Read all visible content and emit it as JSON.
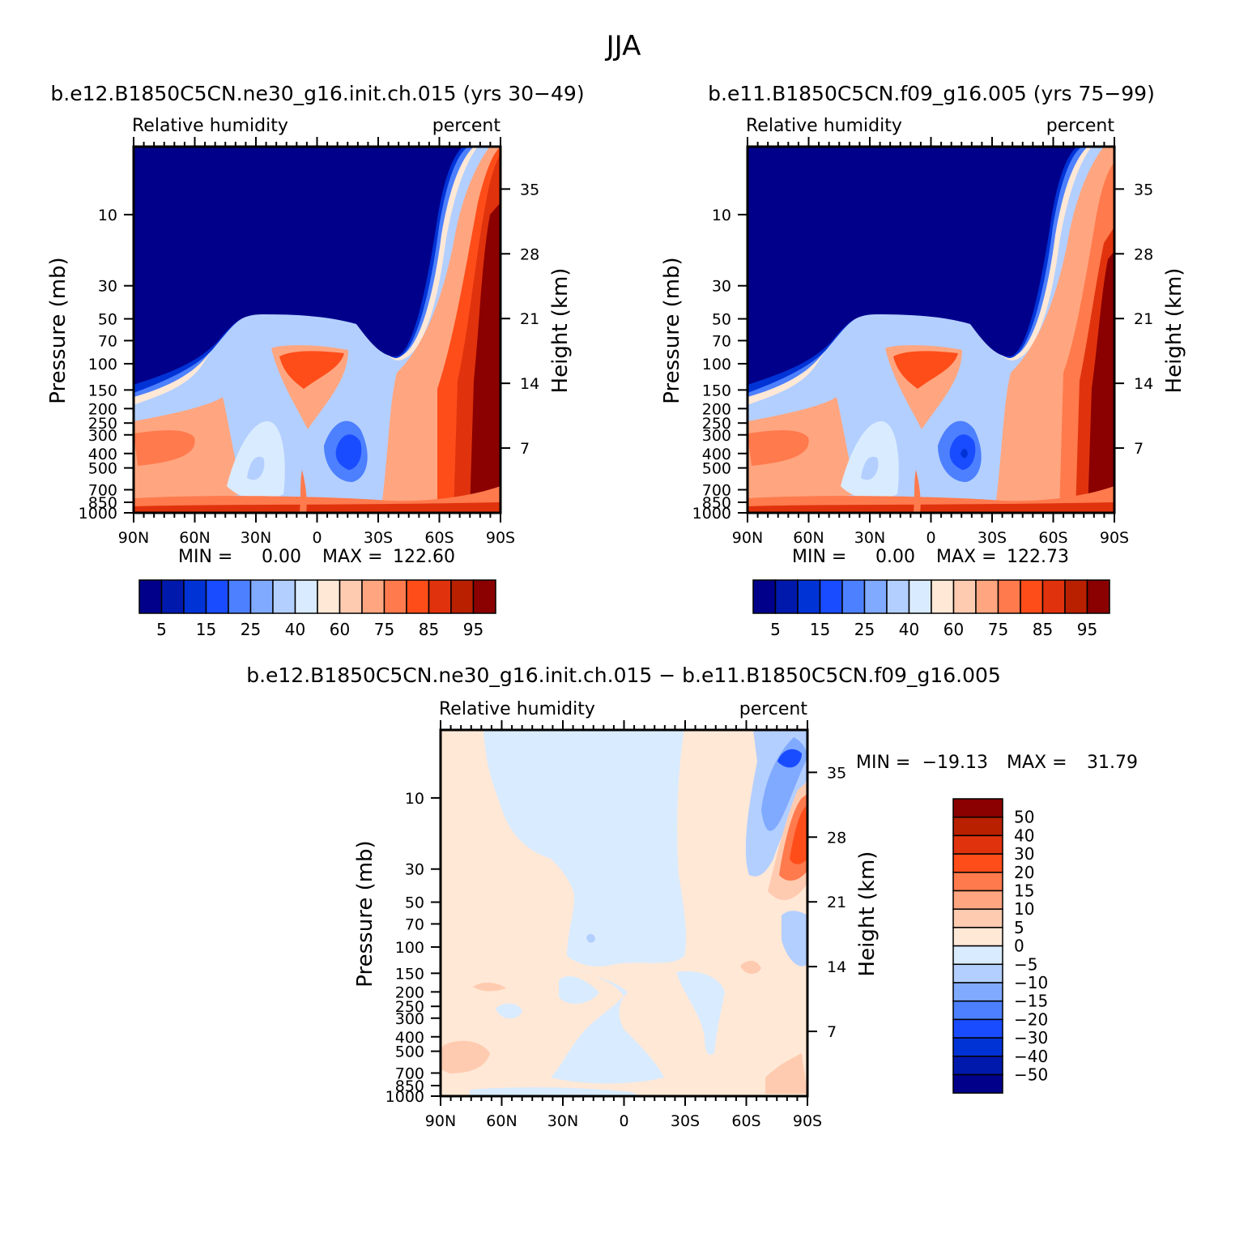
{
  "figure": {
    "title": "JJA"
  },
  "colors": {
    "abs_levels": [
      "#00008b",
      "#0019ad",
      "#0033d6",
      "#1a4cff",
      "#4d80ff",
      "#80aaff",
      "#b3cfff",
      "#d9ebff",
      "#ffe8d6",
      "#ffcbb0",
      "#ffa680",
      "#ff7a4d",
      "#ff4d1a",
      "#e0330d",
      "#b82000",
      "#8b0000"
    ],
    "diff_levels": [
      "#00008b",
      "#0019ad",
      "#0033d6",
      "#1a4cff",
      "#4d80ff",
      "#80aaff",
      "#b3cfff",
      "#d9ebff",
      "#ffe8d6",
      "#ffcbb0",
      "#ffa680",
      "#ff7a4d",
      "#ff4d1a",
      "#e0330d",
      "#b82000",
      "#8b0000"
    ]
  },
  "chart_data": [
    {
      "type": "contour",
      "title": "b.e12.B1850C5CN.ne30_g16.init.ch.015 (yrs 30−49)",
      "left_subtitle": "Relative humidity",
      "right_subtitle": "percent",
      "xlabel": "",
      "ylabel": "Pressure (mb)",
      "ylabel_right": "Height (km)",
      "x_ticks": [
        "90N",
        "60N",
        "30N",
        "0",
        "30S",
        "60S",
        "90S"
      ],
      "y_ticks": [
        "10",
        "30",
        "50",
        "70",
        "100",
        "150",
        "200",
        "250",
        "300",
        "400",
        "500",
        "700",
        "850",
        "1000"
      ],
      "y_ticks_right": [
        "35",
        "28",
        "21",
        "14",
        "7"
      ],
      "stats": {
        "min_label": "MIN =",
        "min": "0.00",
        "max_label": "MAX =",
        "max": "122.60"
      },
      "colorbar_labels": [
        "5",
        "15",
        "25",
        "40",
        "60",
        "75",
        "85",
        "95"
      ]
    },
    {
      "type": "contour",
      "title": "b.e11.B1850C5CN.f09_g16.005 (yrs 75−99)",
      "left_subtitle": "Relative humidity",
      "right_subtitle": "percent",
      "xlabel": "",
      "ylabel": "Pressure (mb)",
      "ylabel_right": "Height (km)",
      "x_ticks": [
        "90N",
        "60N",
        "30N",
        "0",
        "30S",
        "60S",
        "90S"
      ],
      "y_ticks": [
        "10",
        "30",
        "50",
        "70",
        "100",
        "150",
        "200",
        "250",
        "300",
        "400",
        "500",
        "700",
        "850",
        "1000"
      ],
      "y_ticks_right": [
        "35",
        "28",
        "21",
        "14",
        "7"
      ],
      "stats": {
        "min_label": "MIN =",
        "min": "0.00",
        "max_label": "MAX =",
        "max": "122.73"
      },
      "colorbar_labels": [
        "5",
        "15",
        "25",
        "40",
        "60",
        "75",
        "85",
        "95"
      ]
    },
    {
      "type": "contour",
      "title": "b.e12.B1850C5CN.ne30_g16.init.ch.015 − b.e11.B1850C5CN.f09_g16.005",
      "left_subtitle": "Relative humidity",
      "right_subtitle": "percent",
      "xlabel": "",
      "ylabel": "Pressure (mb)",
      "ylabel_right": "Height (km)",
      "x_ticks": [
        "90N",
        "60N",
        "30N",
        "0",
        "30S",
        "60S",
        "90S"
      ],
      "y_ticks": [
        "10",
        "30",
        "50",
        "70",
        "100",
        "150",
        "200",
        "250",
        "300",
        "400",
        "500",
        "700",
        "850",
        "1000"
      ],
      "y_ticks_right": [
        "35",
        "28",
        "21",
        "14",
        "7"
      ],
      "stats": {
        "min_label": "MIN =",
        "min": "−19.13",
        "max_label": "MAX =",
        "max": "31.79"
      },
      "colorbar_labels": [
        "50",
        "40",
        "30",
        "20",
        "15",
        "10",
        "5",
        "0",
        "−5",
        "−10",
        "−15",
        "−20",
        "−30",
        "−40",
        "−50"
      ]
    }
  ]
}
